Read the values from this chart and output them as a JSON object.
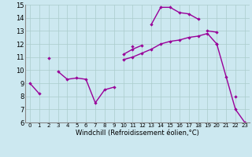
{
  "xlabel": "Windchill (Refroidissement éolien,°C)",
  "x": [
    0,
    1,
    2,
    3,
    4,
    5,
    6,
    7,
    8,
    9,
    10,
    11,
    12,
    13,
    14,
    15,
    16,
    17,
    18,
    19,
    20,
    21,
    22,
    23
  ],
  "line1": [
    9.0,
    8.2,
    null,
    9.9,
    9.3,
    9.4,
    9.3,
    7.5,
    8.5,
    8.7,
    null,
    11.8,
    null,
    13.5,
    14.8,
    14.8,
    14.4,
    14.3,
    13.9,
    null,
    12.0,
    null,
    8.0,
    null
  ],
  "line2": [
    null,
    null,
    10.9,
    null,
    null,
    null,
    null,
    null,
    null,
    null,
    11.2,
    11.6,
    11.9,
    null,
    null,
    null,
    null,
    null,
    null,
    13.0,
    12.9,
    null,
    null,
    null
  ],
  "line3": [
    null,
    null,
    null,
    null,
    null,
    null,
    null,
    null,
    null,
    null,
    10.8,
    11.0,
    11.3,
    11.6,
    12.0,
    12.2,
    12.3,
    12.5,
    12.6,
    12.8,
    12.0,
    9.5,
    7.0,
    6.0
  ],
  "line_color": "#990099",
  "bg_color": "#cce8f0",
  "grid_color": "#aacccc",
  "ylim": [
    6,
    15
  ],
  "xlim_min": -0.5,
  "xlim_max": 23.5,
  "xtick_fontsize": 5,
  "ytick_fontsize": 6,
  "xlabel_fontsize": 6,
  "linewidth": 1.0,
  "markersize": 2.2
}
